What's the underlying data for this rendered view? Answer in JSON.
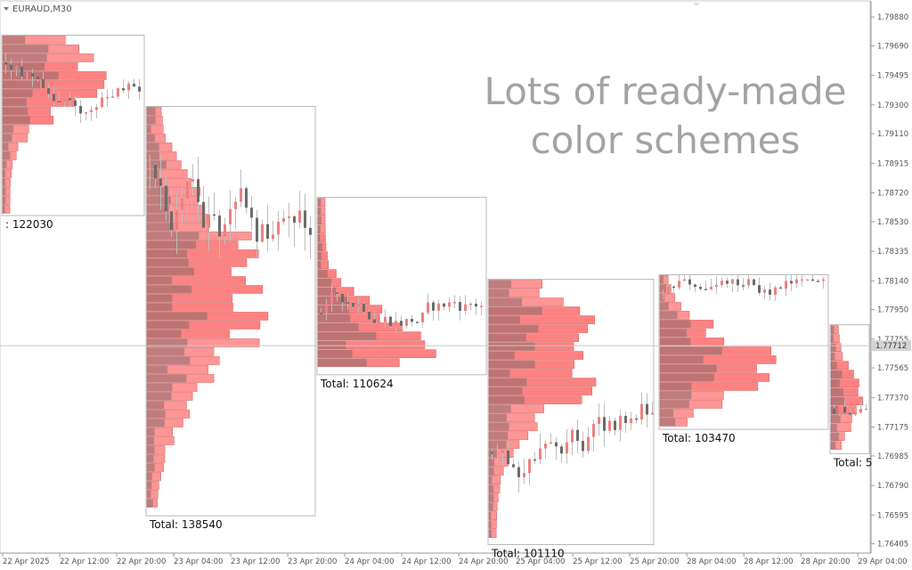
{
  "symbol": "EURAUD,M30",
  "headline": [
    "Lots of ready-made",
    "color schemes"
  ],
  "current_price": "1.77712",
  "chart_data": {
    "type": "candlestick-with-volume-profile",
    "price_range": [
      1.7635,
      1.7998
    ],
    "price_ticks": [
      "1.79880",
      "1.79690",
      "1.79495",
      "1.79300",
      "1.79110",
      "1.78915",
      "1.78720",
      "1.78530",
      "1.78335",
      "1.78140",
      "1.77950",
      "1.77755",
      "1.77565",
      "1.77370",
      "1.77175",
      "1.76985",
      "1.76790",
      "1.76595",
      "1.76405"
    ],
    "date_ticks": [
      "22 Apr 2025",
      "22 Apr 12:00",
      "22 Apr 20:00",
      "23 Apr 04:00",
      "23 Apr 12:00",
      "23 Apr 20:00",
      "24 Apr 04:00",
      "24 Apr 12:00",
      "24 Apr 20:00",
      "25 Apr 04:00",
      "25 Apr 12:00",
      "25 Apr 20:00",
      "28 Apr 04:00",
      "28 Apr 12:00",
      "28 Apr 20:00",
      "29 Apr 04:00"
    ],
    "colors": {
      "profile_fill": "#ff7b7b",
      "profile_dark": "#8a6a6a",
      "bull": "#f08080",
      "bear": "#6b6b6b",
      "box": "#b8b8b8"
    },
    "sessions": [
      {
        "total": "122030",
        "label_prefix": ":",
        "high": 1.7976,
        "low": 1.7857,
        "poc": 1.795,
        "va": [
          1.7915,
          1.796
        ],
        "trend": -1
      },
      {
        "total": "138540",
        "label_prefix": "Total:",
        "high": 1.7929,
        "low": 1.7659,
        "poc": 1.7805,
        "va": [
          1.7775,
          1.784
        ],
        "trend": -1
      },
      {
        "total": "110624",
        "label_prefix": "Total:",
        "high": 1.7869,
        "low": 1.7752,
        "poc": 1.777,
        "va": [
          1.7755,
          1.7845
        ],
        "trend": 1
      },
      {
        "total": "101110",
        "label_prefix": "Total:",
        "high": 1.7815,
        "low": 1.764,
        "poc": 1.7765,
        "va": [
          1.7735,
          1.7795
        ],
        "trend": 1
      },
      {
        "total": "103470",
        "label_prefix": "Total:",
        "high": 1.7818,
        "low": 1.7716,
        "poc": 1.7758,
        "va": [
          1.774,
          1.779
        ],
        "trend": -1
      },
      {
        "total": "5",
        "label_prefix": "Total:",
        "high": 1.7785,
        "low": 1.77,
        "poc": 1.7738,
        "va": [
          1.7725,
          1.776
        ],
        "trend": 1
      }
    ]
  }
}
